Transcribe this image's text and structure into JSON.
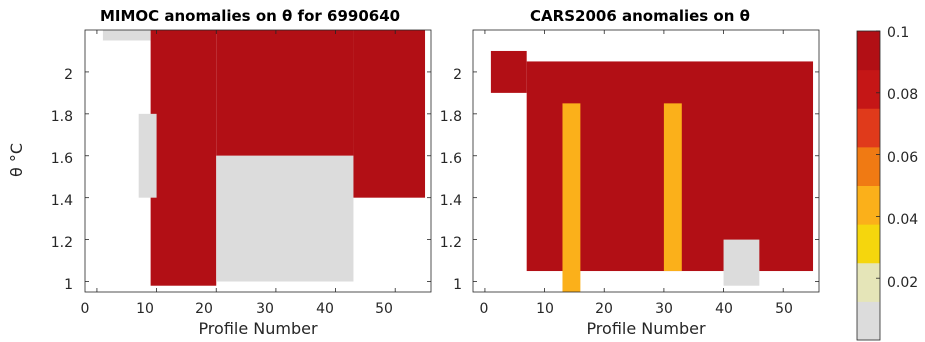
{
  "chart_data": [
    {
      "type": "heatmap",
      "title": "MIMOC anomalies on θ  for 6990640",
      "xlabel": "Profile Number",
      "ylabel": "θ °C",
      "xlim": [
        -2,
        56
      ],
      "ylim": [
        0.95,
        2.2
      ],
      "xticks": [
        "0",
        "10",
        "20",
        "30",
        "40",
        "50"
      ],
      "yticks": [
        "1",
        "1.2",
        "1.4",
        "1.6",
        "1.8",
        "2"
      ],
      "grid": false,
      "regions": [
        {
          "profiles": [
            1,
            9
          ],
          "theta": [
            2.15,
            2.2
          ],
          "value": 0.0
        },
        {
          "profiles": [
            9,
            20
          ],
          "theta": [
            0.98,
            2.2
          ],
          "value": 0.1
        },
        {
          "profiles": [
            20,
            43
          ],
          "theta": [
            1.6,
            2.2
          ],
          "value": 0.1
        },
        {
          "profiles": [
            20,
            43
          ],
          "theta": [
            1.0,
            1.6
          ],
          "value": 0.0
        },
        {
          "profiles": [
            43,
            55
          ],
          "theta": [
            1.4,
            2.2
          ],
          "value": 0.1
        },
        {
          "profiles": [
            7,
            10
          ],
          "theta": [
            1.4,
            1.8
          ],
          "value": 0.0
        }
      ]
    },
    {
      "type": "heatmap",
      "title": "CARS2006 anomalies on θ",
      "xlabel": "Profile Number",
      "ylabel": "",
      "xlim": [
        -2,
        56
      ],
      "ylim": [
        0.95,
        2.2
      ],
      "xticks": [
        "0",
        "10",
        "20",
        "30",
        "40",
        "50"
      ],
      "yticks": [
        "1",
        "1.2",
        "1.4",
        "1.6",
        "1.8",
        "2"
      ],
      "grid": false,
      "regions": [
        {
          "profiles": [
            1,
            7
          ],
          "theta": [
            1.9,
            2.1
          ],
          "value": 0.1
        },
        {
          "profiles": [
            7,
            55
          ],
          "theta": [
            1.05,
            2.05
          ],
          "value": 0.1
        },
        {
          "profiles": [
            13,
            16
          ],
          "theta": [
            0.95,
            1.85
          ],
          "value": 0.04
        },
        {
          "profiles": [
            30,
            33
          ],
          "theta": [
            1.05,
            1.85
          ],
          "value": 0.04
        },
        {
          "profiles": [
            40,
            46
          ],
          "theta": [
            0.98,
            1.2
          ],
          "value": 0.0
        }
      ]
    }
  ],
  "colorbar": {
    "ticks": [
      "0.1",
      "0.08",
      "0.06",
      "0.04",
      "0.02"
    ],
    "range": [
      0,
      0.1
    ],
    "colors": [
      "#dcdcdc",
      "#e5e5b8",
      "#f5d60d",
      "#fbb01a",
      "#f07a13",
      "#e03a1b",
      "#c51616",
      "#b20f15"
    ]
  }
}
